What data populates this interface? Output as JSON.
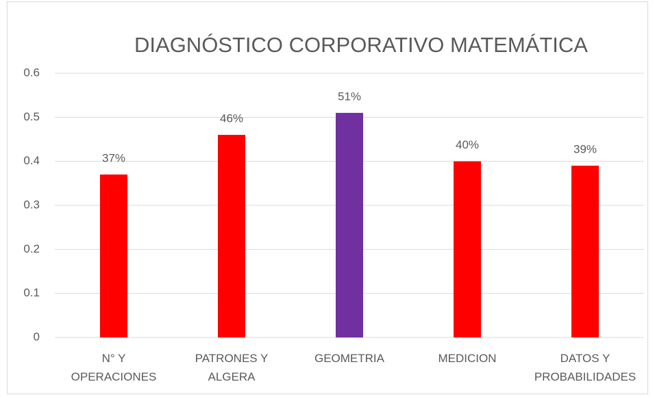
{
  "chart_data": {
    "type": "bar",
    "title": "DIAGNÓSTICO CORPORATIVO MATEMÁTICA",
    "categories": [
      "N° Y\nOPERACIONES",
      "PATRONES Y\nALGERA",
      "GEOMETRIA",
      "MEDICION",
      "DATOS Y\nPROBABILIDADES"
    ],
    "values": [
      0.37,
      0.46,
      0.51,
      0.4,
      0.39
    ],
    "value_labels": [
      "37%",
      "46%",
      "51%",
      "40%",
      "39%"
    ],
    "colors": [
      "#ff0000",
      "#ff0000",
      "#7030a0",
      "#ff0000",
      "#ff0000"
    ],
    "ylim": [
      0,
      0.6
    ],
    "yticks": [
      0,
      0.1,
      0.2,
      0.3,
      0.4,
      0.5,
      0.6
    ],
    "grid": true
  }
}
